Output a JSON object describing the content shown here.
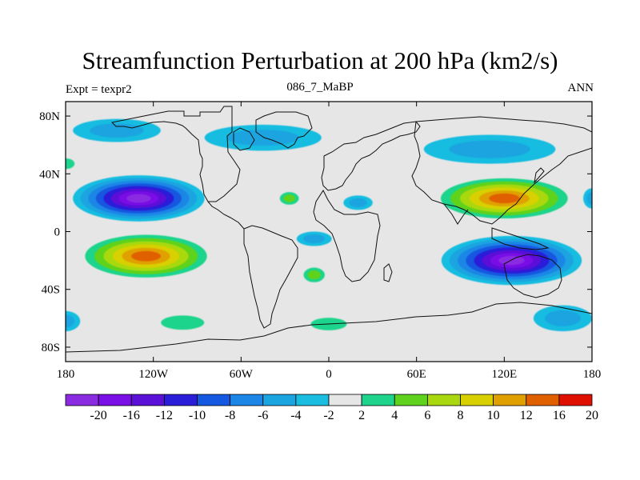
{
  "header": {
    "title": "Streamfunction Perturbation at 200 hPa (km2/s)",
    "left": "Expt = texpr2",
    "center": "086_7_MaBP",
    "right": "ANN"
  },
  "map": {
    "projection": "cylindrical-equidistant",
    "lon_range": [
      -180,
      180
    ],
    "lat_range": [
      -90,
      90
    ],
    "background": "#e6e6e6",
    "y_ticks": [
      {
        "lat": 80,
        "label": "80N"
      },
      {
        "lat": 40,
        "label": "40N"
      },
      {
        "lat": 0,
        "label": "0"
      },
      {
        "lat": -40,
        "label": "40S"
      },
      {
        "lat": -80,
        "label": "80S"
      }
    ],
    "x_ticks": [
      {
        "lon": -180,
        "label": "180"
      },
      {
        "lon": -120,
        "label": "120W"
      },
      {
        "lon": -60,
        "label": "60W"
      },
      {
        "lon": 0,
        "label": "0"
      },
      {
        "lon": 60,
        "label": "60E"
      },
      {
        "lon": 120,
        "label": "120E"
      },
      {
        "lon": 180,
        "label": "180"
      }
    ],
    "features": [
      {
        "name": "anticyclone-north-pacific",
        "type": "low",
        "lon": -130,
        "lat": 23,
        "peak_value": -20,
        "rx": 45,
        "ry": 16
      },
      {
        "name": "anticyclone-south-pacific",
        "type": "high",
        "lon": -125,
        "lat": -17,
        "peak_value": 16,
        "rx": 48,
        "ry": 17
      },
      {
        "name": "cyclone-asia",
        "type": "high",
        "lon": 120,
        "lat": 23,
        "peak_value": 16,
        "rx": 50,
        "ry": 16
      },
      {
        "name": "anticyclone-south-indian",
        "type": "low",
        "lon": 125,
        "lat": -20,
        "peak_value": -20,
        "rx": 48,
        "ry": 17
      },
      {
        "name": "high-west-atlantic-north",
        "type": "high",
        "lon": -180,
        "lat": 47,
        "peak_value": 4,
        "rx": 10,
        "ry": 6
      },
      {
        "name": "high-north-atlantic",
        "type": "high",
        "lon": -27,
        "lat": 23,
        "peak_value": 6,
        "rx": 9,
        "ry": 6
      },
      {
        "name": "high-south-atlantic",
        "type": "high",
        "lon": -10,
        "lat": -30,
        "peak_value": 6,
        "rx": 10,
        "ry": 7
      },
      {
        "name": "high-south-pacific-60s",
        "type": "high",
        "lon": -100,
        "lat": -63,
        "peak_value": 4,
        "rx": 24,
        "ry": 8
      },
      {
        "name": "high-south-ocean-60s",
        "type": "high",
        "lon": 0,
        "lat": -64,
        "peak_value": 4,
        "rx": 20,
        "ry": 7
      },
      {
        "name": "high-north-pacific-70n",
        "type": "high",
        "lon": 75,
        "lat": 58,
        "peak_value": 4,
        "rx": 14,
        "ry": 6
      },
      {
        "name": "low-arctic-eurasia",
        "type": "low",
        "lon": 110,
        "lat": 57,
        "peak_value": -4,
        "rx": 45,
        "ry": 10
      },
      {
        "name": "low-north-atlantic-70n",
        "type": "low",
        "lon": -45,
        "lat": 65,
        "peak_value": -4,
        "rx": 40,
        "ry": 9
      },
      {
        "name": "low-north-pacific-70n",
        "type": "low",
        "lon": -145,
        "lat": 70,
        "peak_value": -4,
        "rx": 30,
        "ry": 8
      },
      {
        "name": "low-africa-equator",
        "type": "low",
        "lon": 20,
        "lat": 20,
        "peak_value": -4,
        "rx": 10,
        "ry": 5
      },
      {
        "name": "low-equator-africa",
        "type": "low",
        "lon": -10,
        "lat": -5,
        "peak_value": -4,
        "rx": 12,
        "ry": 5
      },
      {
        "name": "low-south-pacific-70s",
        "type": "low",
        "lon": 160,
        "lat": -60,
        "peak_value": -4,
        "rx": 20,
        "ry": 9
      },
      {
        "name": "low-south-pacific-60s",
        "type": "low",
        "lon": -180,
        "lat": -62,
        "peak_value": -4,
        "rx": 10,
        "ry": 7
      },
      {
        "name": "low-west-pacific-north",
        "type": "low",
        "lon": 180,
        "lat": 23,
        "peak_value": -4,
        "rx": 6,
        "ry": 7
      }
    ]
  },
  "colorbar": {
    "colors": [
      "#8a2be2",
      "#7a10e6",
      "#5b10d8",
      "#2b1ed8",
      "#1457e0",
      "#1b86e6",
      "#1aa4e0",
      "#18bde0",
      "#e6e6e6",
      "#1ed48c",
      "#5ed21c",
      "#a9d80e",
      "#d8d000",
      "#e0a000",
      "#e06000",
      "#e01000"
    ],
    "labels": [
      "-20",
      "-16",
      "-12",
      "-10",
      "-8",
      "-6",
      "-4",
      "-2",
      "2",
      "4",
      "6",
      "8",
      "10",
      "12",
      "16",
      "20"
    ]
  }
}
